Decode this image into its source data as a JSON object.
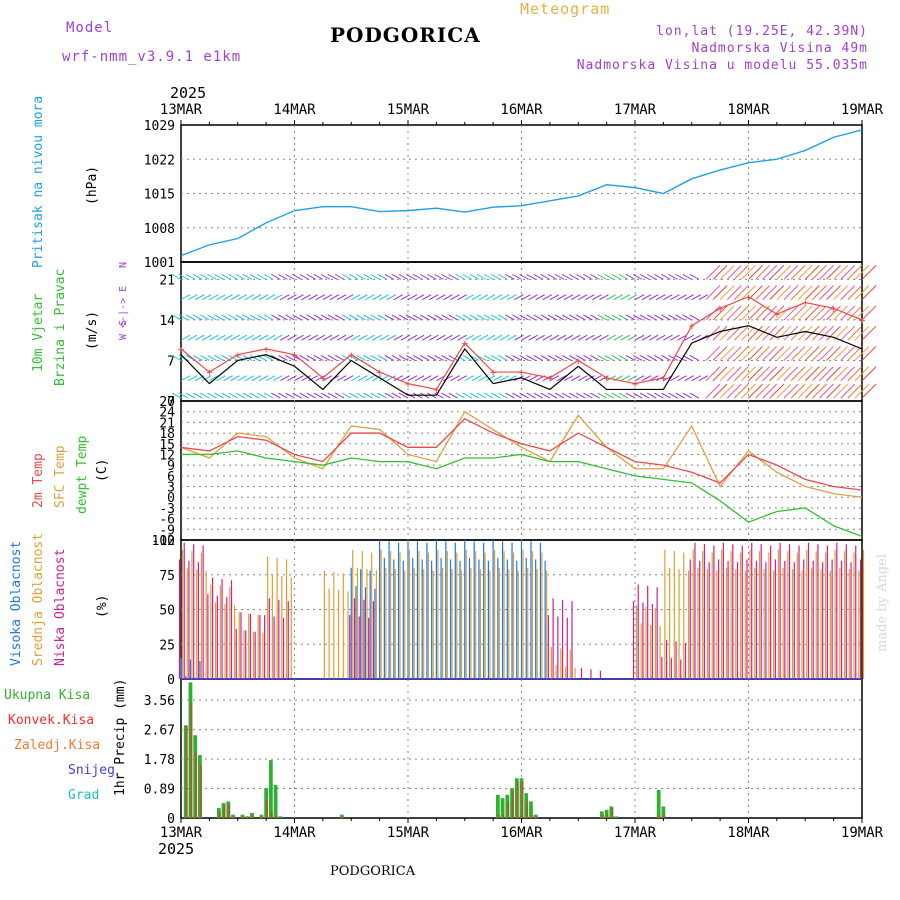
{
  "header": {
    "model_label": "Model",
    "model_name": "wrf-nmm_v3.9.1 e1km",
    "title": "PODGORICA",
    "meteogram": "Meteogram",
    "lonlat": "lon,lat (19.25E, 42.39N)",
    "elevation": "Nadmorska Visina 49m",
    "model_elevation": "Nadmorska Visina u modelu 55.035m",
    "credit": "made by Angel",
    "footer_title": "PODGORICA"
  },
  "colors": {
    "pressure": "#1ea0e8",
    "temp2m": "#f04848",
    "sfctemp": "#e0a040",
    "dewpt": "#30c030",
    "high_cloud": "#1e78e8",
    "mid_cloud": "#e0a030",
    "low_cloud": "#d02090",
    "total_precip": "#30b030",
    "conv_precip": "#f03030",
    "frozen_precip": "#f07830",
    "snow": "#4040e0",
    "hail": "#20c0c0",
    "header_purple": "#a040d0",
    "header_gold": "#e8b040"
  },
  "time_axis": {
    "year": "2025",
    "labels": [
      "13MAR",
      "14MAR",
      "15MAR",
      "16MAR",
      "17MAR",
      "18MAR",
      "19MAR"
    ]
  },
  "panels": {
    "pressure": {
      "ylabel": "Pritisak na nivou mora",
      "unit": "(hPa)"
    },
    "wind": {
      "ylabel1": "10m Vjetar",
      "ylabel2": "Brzina i Pravac",
      "unit": "(m/s)",
      "compass": [
        "N",
        "W <-|-> E",
        "S"
      ]
    },
    "temp": {
      "ylabel1": "2m Temp",
      "ylabel2": "SFC Temp",
      "ylabel3": "dewpt Temp",
      "unit": "(C)"
    },
    "cloud": {
      "ylabel1": "Visoka Oblacnost",
      "ylabel2": "Srednja Oblacnost",
      "ylabel3": "Niska Oblacnost",
      "unit": "(%)"
    },
    "precip": {
      "legend": [
        "Ukupna Kisa",
        "Konvek.Kisa",
        "Zaledj.Kisa",
        "Snijeg",
        "Grad"
      ],
      "ylabel": "1hr Precip (mm)"
    }
  },
  "chart_data": [
    {
      "type": "line",
      "title": "Pritisak na nivou mora",
      "ylabel": "(hPa)",
      "ylim": [
        1001,
        1029
      ],
      "yticks": [
        1001,
        1008,
        1015,
        1022,
        1029
      ],
      "x": [
        0,
        6,
        12,
        18,
        24,
        30,
        36,
        42,
        48,
        54,
        60,
        66,
        72,
        78,
        84,
        90,
        96,
        102,
        108,
        114,
        120,
        126,
        132,
        138,
        144
      ],
      "series": [
        {
          "values": [
            1002.3,
            1004.5,
            1005.8,
            1009.0,
            1011.5,
            1012.3,
            1012.3,
            1011.3,
            1011.5,
            1012.0,
            1011.2,
            1012.2,
            1012.5,
            1013.5,
            1014.5,
            1016.8,
            1016.2,
            1015.0,
            1018.0,
            1019.8,
            1021.3,
            1022.0,
            1023.8,
            1026.5,
            1028.0
          ]
        }
      ]
    },
    {
      "type": "line",
      "title": "10m Vjetar Brzina i Pravac",
      "ylabel": "(m/s)",
      "ylim": [
        0,
        24
      ],
      "yticks": [
        0,
        7,
        14,
        21
      ],
      "x": [
        0,
        6,
        12,
        18,
        24,
        30,
        36,
        42,
        48,
        54,
        60,
        66,
        72,
        78,
        84,
        90,
        96,
        102,
        108,
        114,
        120,
        126,
        132,
        138,
        144
      ],
      "series": [
        {
          "values": [
            8,
            3,
            7,
            8,
            6,
            2,
            7,
            4,
            1,
            1,
            9,
            3,
            4,
            2,
            6,
            2,
            2,
            2,
            10,
            12,
            13,
            11,
            12,
            11,
            9
          ]
        },
        {
          "values": [
            9,
            5,
            8,
            9,
            8,
            4,
            8,
            5,
            3,
            2,
            10,
            5,
            5,
            4,
            7,
            4,
            3,
            4,
            13,
            16,
            18,
            15,
            17,
            16,
            14
          ]
        }
      ]
    },
    {
      "type": "line",
      "title": "2m Temp / SFC Temp / dewpt Temp",
      "ylabel": "(C)",
      "ylim": [
        -12,
        27
      ],
      "yticks": [
        -12,
        -9,
        -6,
        -3,
        0,
        3,
        6,
        9,
        12,
        15,
        18,
        21,
        24,
        27
      ],
      "x": [
        0,
        6,
        12,
        18,
        24,
        30,
        36,
        42,
        48,
        54,
        60,
        66,
        72,
        78,
        84,
        90,
        96,
        102,
        108,
        114,
        120,
        126,
        132,
        138,
        144
      ],
      "series": [
        {
          "name": "2m Temp",
          "values": [
            14,
            13,
            17,
            16,
            12,
            10,
            18,
            18,
            14,
            14,
            22,
            18,
            15,
            13,
            18,
            14,
            10,
            9,
            7,
            4,
            12,
            9,
            5,
            3,
            2
          ]
        },
        {
          "name": "SFC Temp",
          "values": [
            14,
            11,
            18,
            17,
            11,
            8,
            20,
            19,
            12,
            10,
            24,
            19,
            14,
            10,
            23,
            14,
            8,
            8,
            20,
            3,
            13,
            7,
            3,
            1,
            0
          ]
        },
        {
          "name": "dewpt Temp",
          "values": [
            12,
            12,
            13,
            11,
            10,
            9,
            11,
            10,
            10,
            8,
            11,
            11,
            12,
            10,
            10,
            8,
            6,
            5,
            4,
            -1,
            -7,
            -4,
            -3,
            -8,
            -11
          ]
        }
      ]
    },
    {
      "type": "bar",
      "title": "Visoka / Srednja / Niska Oblacnost",
      "ylabel": "(%)",
      "ylim": [
        0,
        100
      ],
      "yticks": [
        0,
        25,
        50,
        75,
        100
      ],
      "x": [
        0,
        6,
        12,
        18,
        24,
        30,
        36,
        42,
        48,
        54,
        60,
        66,
        72,
        78,
        84,
        90,
        96,
        102,
        108,
        114,
        120,
        126,
        132,
        138,
        144
      ],
      "series": [
        {
          "name": "Visoka Oblacnost",
          "values": [
            15,
            0,
            0,
            0,
            0,
            0,
            80,
            100,
            100,
            100,
            100,
            100,
            100,
            0,
            0,
            0,
            0,
            0,
            0,
            0,
            0,
            0,
            0,
            0,
            0
          ]
        },
        {
          "name": "Srednja Oblacnost",
          "values": [
            100,
            75,
            55,
            95,
            0,
            85,
            100,
            100,
            100,
            100,
            100,
            100,
            100,
            30,
            0,
            0,
            60,
            100,
            100,
            100,
            100,
            100,
            100,
            100,
            100
          ]
        },
        {
          "name": "Niska Oblacnost",
          "values": [
            100,
            75,
            50,
            60,
            0,
            0,
            60,
            0,
            0,
            0,
            0,
            0,
            0,
            60,
            10,
            0,
            70,
            30,
            100,
            100,
            100,
            100,
            100,
            100,
            100
          ]
        }
      ]
    },
    {
      "type": "bar",
      "title": "1hr Precip",
      "ylabel": "(mm)",
      "ylim": [
        0,
        4.2
      ],
      "yticks": [
        0,
        0.89,
        1.78,
        2.67,
        3.56
      ],
      "x": [
        1,
        2,
        3,
        4,
        8,
        9,
        10,
        11,
        13,
        14,
        15,
        17,
        18,
        19,
        20,
        21,
        34,
        67,
        68,
        69,
        70,
        71,
        72,
        73,
        74,
        75,
        89,
        90,
        91,
        92,
        101,
        102
      ],
      "series": [
        {
          "name": "Ukupna Kisa",
          "values": [
            2.8,
            4.1,
            2.5,
            1.9,
            0.3,
            0.45,
            0.5,
            0.1,
            0.1,
            0.05,
            0.15,
            0.1,
            0.9,
            1.75,
            1.0,
            0.05,
            0.1,
            0.7,
            0.6,
            0.7,
            0.9,
            1.2,
            1.2,
            0.75,
            0.5,
            0.1,
            0.2,
            0.25,
            0.35,
            0.05,
            0.85,
            0.35
          ]
        },
        {
          "name": "Konvek.Kisa",
          "values": [
            2.8,
            3.5,
            2.0,
            1.6,
            0.2,
            0.4,
            0.4,
            0.05,
            0.05,
            0.05,
            0.1,
            0.05,
            0.6,
            0.2,
            0.05,
            0.02,
            0.05,
            0.1,
            0.1,
            0.5,
            0.8,
            1.1,
            1.1,
            0.5,
            0.1,
            0.05,
            0.1,
            0.1,
            0.3,
            0.02,
            0.1,
            0.1
          ]
        }
      ]
    }
  ]
}
